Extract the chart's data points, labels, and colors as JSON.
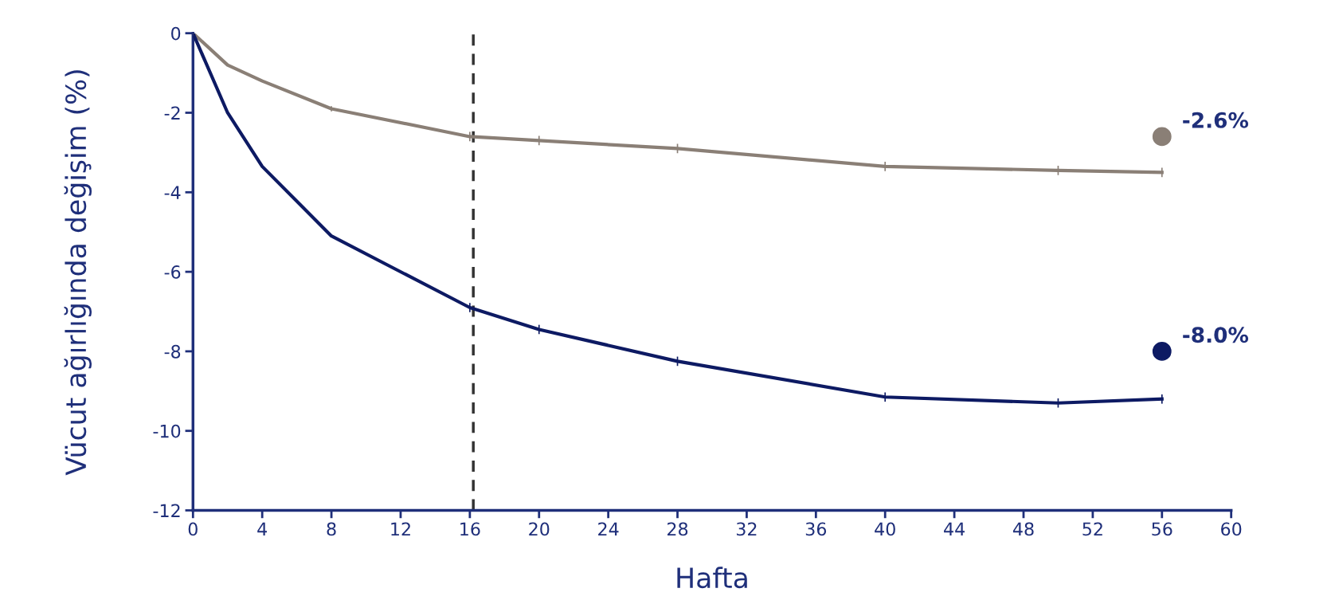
{
  "chart_data": {
    "type": "line",
    "xlabel": "Hafta",
    "ylabel": "Vücut ağırlığında değişim (%)",
    "xlim": [
      0,
      60
    ],
    "xticks": [
      0,
      4,
      8,
      12,
      16,
      20,
      24,
      28,
      32,
      36,
      40,
      44,
      48,
      52,
      56,
      60
    ],
    "ylim": [
      -12,
      0
    ],
    "yticks": [
      -12,
      -10,
      -8,
      -6,
      -4,
      -2,
      0
    ],
    "grid": false,
    "legend": false,
    "marker": "none",
    "line_style": "solid",
    "series": [
      {
        "color": "#8a7f76",
        "x": [
          0,
          2,
          4,
          8,
          16,
          20,
          28,
          40,
          50,
          56
        ],
        "values": [
          0,
          -0.8,
          -1.2,
          -1.9,
          -2.6,
          -2.7,
          -2.9,
          -3.35,
          -3.45,
          -3.5
        ],
        "errors": [
          null,
          null,
          null,
          0.05,
          0.1,
          0.1,
          0.1,
          0.1,
          0.1,
          0.1
        ]
      },
      {
        "color": "#0d1a63",
        "x": [
          0,
          2,
          4,
          8,
          16,
          20,
          28,
          40,
          50,
          56
        ],
        "values": [
          0,
          -2.0,
          -3.35,
          -5.1,
          -6.9,
          -7.45,
          -8.25,
          -9.15,
          -9.3,
          -9.2
        ],
        "errors": [
          null,
          null,
          null,
          null,
          0.1,
          0.1,
          0.1,
          0.1,
          0.1,
          0.1
        ]
      },
      {
        "type": "scatter",
        "marker": "circle",
        "color": "#8a7f76",
        "x": [
          56
        ],
        "values": [
          -2.6
        ]
      },
      {
        "type": "scatter",
        "marker": "circle",
        "color": "#0d1a63",
        "x": [
          56
        ],
        "values": [
          -8.0
        ]
      }
    ],
    "ref_lines": [
      {
        "axis": "x",
        "value": 16.2,
        "label": null,
        "color": "#333333",
        "line_style": "dashed"
      }
    ],
    "annotations": [
      {
        "text": "-2.6%",
        "x": 56,
        "y": -2.6
      },
      {
        "text": "-8.0%",
        "x": 56,
        "y": -8.0
      }
    ]
  }
}
